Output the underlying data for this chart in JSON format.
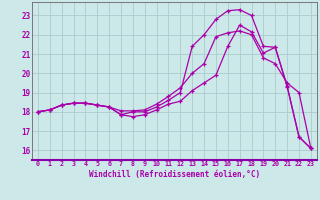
{
  "xlabel": "Windchill (Refroidissement éolien,°C)",
  "bg_color": "#cce8e8",
  "line_color": "#aa00aa",
  "grid_color": "#aacccc",
  "xlim": [
    -0.5,
    23.5
  ],
  "ylim": [
    15.5,
    23.7
  ],
  "xticks": [
    0,
    1,
    2,
    3,
    4,
    5,
    6,
    7,
    8,
    9,
    10,
    11,
    12,
    13,
    14,
    15,
    16,
    17,
    18,
    19,
    20,
    21,
    22,
    23
  ],
  "yticks": [
    16,
    17,
    18,
    19,
    20,
    21,
    22,
    23
  ],
  "curve1_x": [
    0,
    1,
    2,
    3,
    4,
    5,
    6,
    7,
    8,
    9,
    10,
    11,
    12,
    13,
    14,
    15,
    16,
    17,
    18,
    19,
    20,
    21,
    22,
    23
  ],
  "curve1_y": [
    18.0,
    18.1,
    18.35,
    18.45,
    18.45,
    18.35,
    18.25,
    17.85,
    17.75,
    17.85,
    18.1,
    18.4,
    18.55,
    19.1,
    19.5,
    19.9,
    21.4,
    22.5,
    22.15,
    21.05,
    21.35,
    19.3,
    16.7,
    16.1
  ],
  "curve2_x": [
    0,
    1,
    2,
    3,
    4,
    5,
    6,
    7,
    8,
    9,
    10,
    11,
    12,
    13,
    14,
    15,
    16,
    17,
    18,
    19,
    20,
    21,
    22,
    23
  ],
  "curve2_y": [
    18.0,
    18.1,
    18.35,
    18.45,
    18.45,
    18.35,
    18.25,
    18.05,
    18.05,
    18.1,
    18.4,
    18.8,
    19.25,
    20.0,
    20.5,
    21.9,
    22.1,
    22.2,
    22.0,
    20.8,
    20.5,
    19.5,
    19.0,
    16.1
  ],
  "curve3_x": [
    0,
    1,
    2,
    3,
    4,
    5,
    6,
    7,
    8,
    9,
    10,
    11,
    12,
    13,
    14,
    15,
    16,
    17,
    18,
    19,
    20,
    21,
    22,
    23
  ],
  "curve3_y": [
    18.0,
    18.1,
    18.35,
    18.45,
    18.45,
    18.35,
    18.25,
    17.85,
    18.0,
    18.0,
    18.25,
    18.6,
    19.0,
    21.4,
    22.0,
    22.8,
    23.25,
    23.3,
    23.0,
    21.4,
    21.35,
    19.35,
    16.7,
    16.1
  ]
}
